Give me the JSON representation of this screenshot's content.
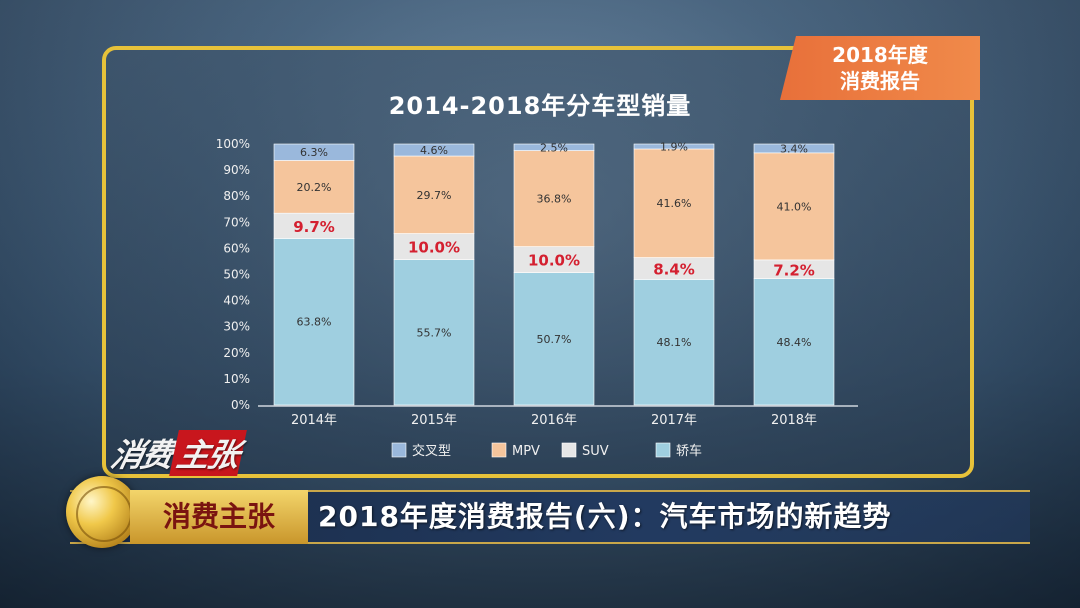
{
  "badge": {
    "line1": "2018年度",
    "line2": "消费报告"
  },
  "program_logo": {
    "part1": "消费",
    "part2": "主张"
  },
  "lower_third": {
    "program": "消费主张",
    "headline": "2018年度消费报告(六)：汽车市场的新趋势"
  },
  "chart_data": {
    "type": "bar",
    "stacked": true,
    "title": "2014-2018年分车型销量",
    "categories": [
      "2014年",
      "2015年",
      "2016年",
      "2017年",
      "2018年"
    ],
    "series": [
      {
        "name": "轿车",
        "color": "#9fcfe0",
        "values": [
          63.8,
          55.7,
          50.7,
          48.1,
          48.4
        ],
        "labels": [
          "63.8%",
          "55.7%",
          "50.7%",
          "48.1%",
          "48.4%"
        ]
      },
      {
        "name": "SUV",
        "color": "#e6e6e6",
        "values": [
          9.7,
          10.0,
          10.0,
          8.4,
          7.2
        ],
        "labels": [
          "9.7%",
          "10.0%",
          "10.0%",
          "8.4%",
          "7.2%"
        ],
        "label_color": "#d42030"
      },
      {
        "name": "MPV",
        "color": "#f5c59c",
        "values": [
          20.2,
          29.7,
          36.8,
          41.6,
          41.0
        ],
        "labels": [
          "20.2%",
          "29.7%",
          "36.8%",
          "41.6%",
          "41.0%"
        ]
      },
      {
        "name": "交叉型",
        "color": "#9ab8dc",
        "values": [
          6.3,
          4.6,
          2.5,
          1.9,
          3.4
        ],
        "labels": [
          "6.3%",
          "4.6%",
          "2.5%",
          "1.9%",
          "3.4%"
        ]
      }
    ],
    "legend_order": [
      "交叉型",
      "MPV",
      "SUV",
      "轿车"
    ],
    "legend_position": "bottom",
    "ylim": [
      0,
      100
    ],
    "yticks": [
      "0%",
      "10%",
      "20%",
      "30%",
      "40%",
      "50%",
      "60%",
      "70%",
      "80%",
      "90%",
      "100%"
    ],
    "grid": false
  }
}
